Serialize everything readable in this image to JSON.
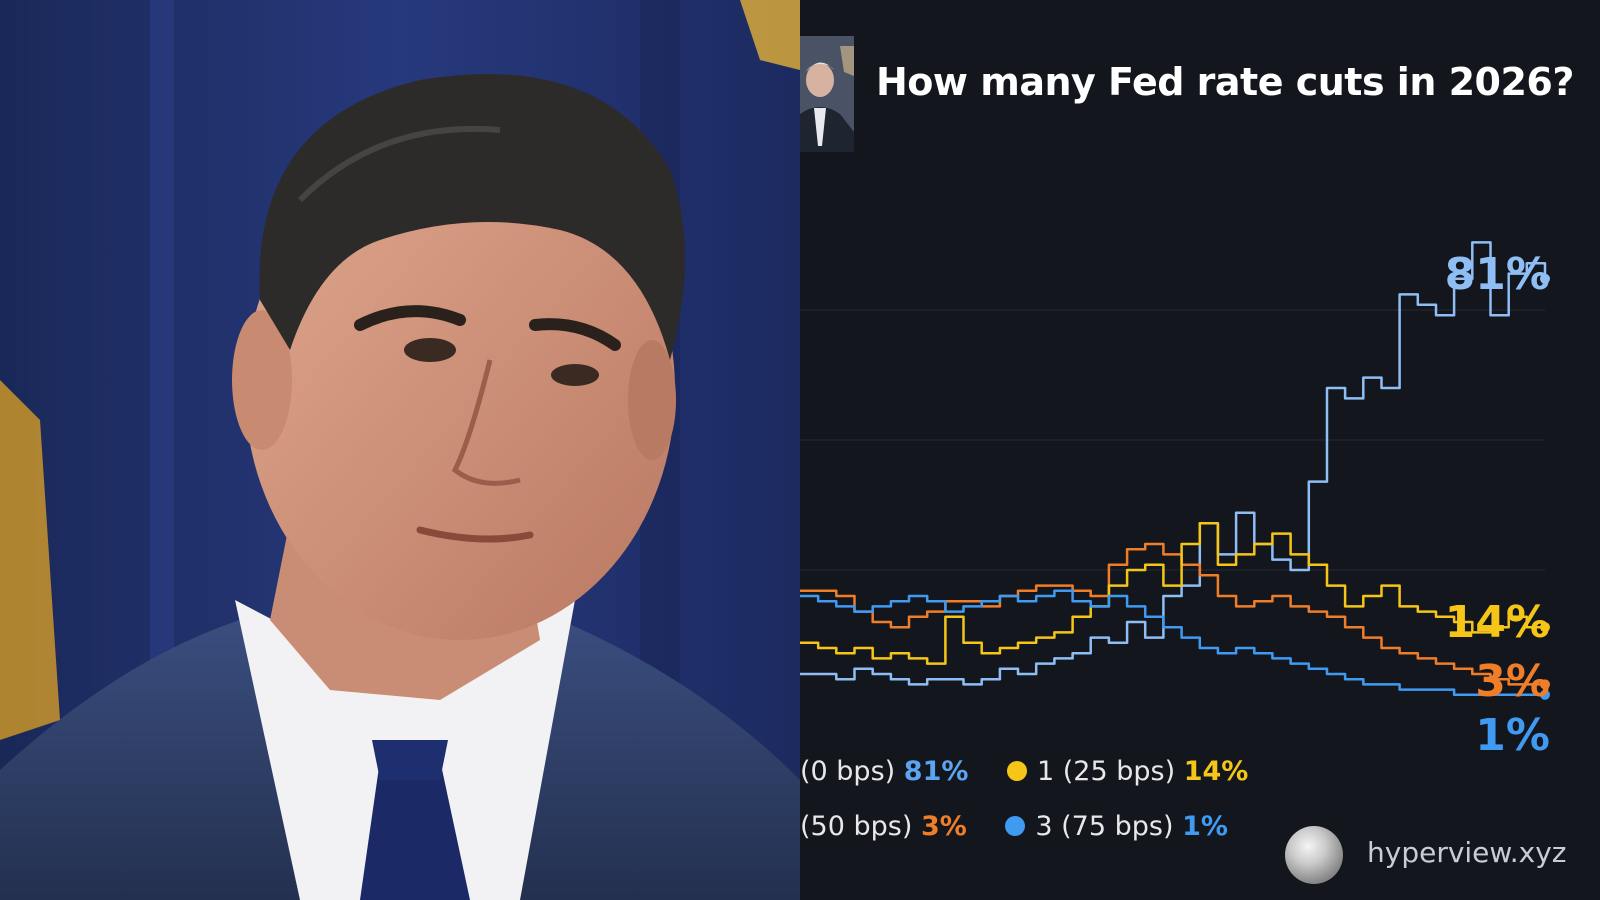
{
  "chart_data": {
    "type": "line",
    "title": "How many Fed rate cuts in 2026?",
    "ylim": [
      0,
      100
    ],
    "grid": true,
    "series": [
      {
        "name": "(0 bps)",
        "end_label": "81%",
        "color": "#8fbef5",
        "values": [
          5,
          5,
          4,
          6,
          5,
          4,
          3,
          4,
          4,
          3,
          4,
          6,
          5,
          7,
          8,
          9,
          12,
          11,
          15,
          12,
          20,
          22,
          34,
          28,
          36,
          30,
          27,
          25,
          42,
          60,
          58,
          62,
          60,
          78,
          76,
          74,
          81,
          88,
          74,
          82,
          84,
          81
        ]
      },
      {
        "name": "1 (25 bps)",
        "end_label": "14%",
        "color": "#f5c518",
        "values": [
          11,
          10,
          9,
          10,
          8,
          9,
          8,
          7,
          16,
          11,
          9,
          10,
          11,
          12,
          13,
          16,
          18,
          22,
          25,
          26,
          22,
          30,
          34,
          26,
          28,
          30,
          32,
          28,
          26,
          22,
          18,
          20,
          22,
          18,
          17,
          16,
          15,
          13,
          14,
          16,
          14,
          14
        ]
      },
      {
        "name": "(50 bps)",
        "end_label": "3%",
        "color": "#f07d28",
        "values": [
          21,
          21,
          20,
          17,
          15,
          14,
          16,
          17,
          19,
          19,
          18,
          20,
          21,
          22,
          22,
          21,
          20,
          26,
          29,
          30,
          28,
          26,
          24,
          20,
          18,
          19,
          20,
          18,
          17,
          16,
          14,
          12,
          10,
          9,
          8,
          7,
          6,
          5,
          4,
          3,
          3,
          3
        ]
      },
      {
        "name": "3 (75 bps)",
        "end_label": "1%",
        "color": "#3f9af2",
        "values": [
          20,
          19,
          18,
          17,
          18,
          19,
          20,
          19,
          17,
          18,
          19,
          20,
          19,
          20,
          21,
          19,
          18,
          20,
          18,
          16,
          14,
          12,
          10,
          9,
          10,
          9,
          8,
          7,
          6,
          5,
          4,
          3,
          3,
          2,
          2,
          2,
          1,
          1,
          1,
          1,
          1,
          1
        ]
      }
    ]
  },
  "legend": [
    {
      "label": "(0 bps)",
      "value": "81%",
      "color": "#5aa4f2",
      "dot": false
    },
    {
      "label": "1 (25 bps)",
      "value": "14%",
      "color": "#f5c518",
      "dot": true
    },
    {
      "label": "(50 bps)",
      "value": "3%",
      "color": "#f07d28",
      "dot": false
    },
    {
      "label": "3 (75 bps)",
      "value": "1%",
      "color": "#3f9af2",
      "dot": true
    }
  ],
  "watermark": "hyperview.xyz"
}
